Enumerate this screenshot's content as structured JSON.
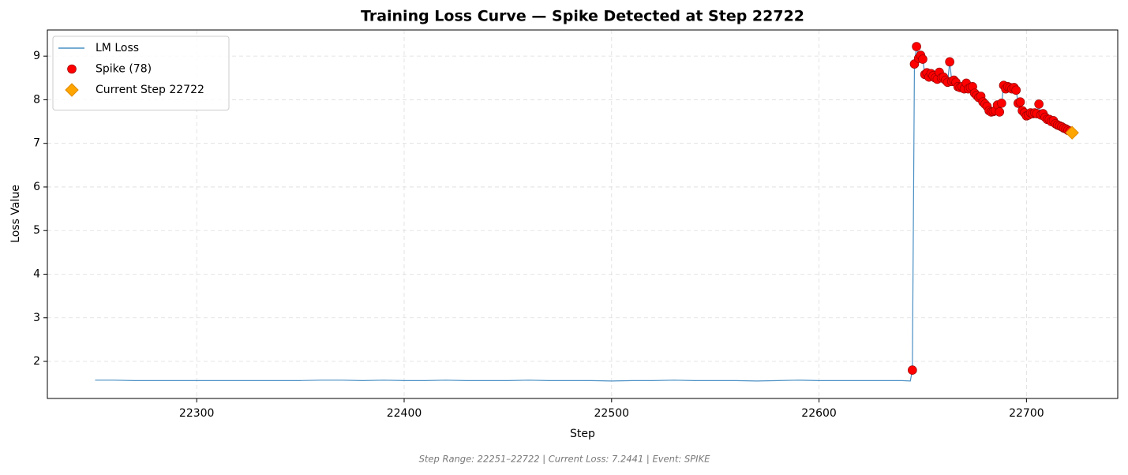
{
  "chart_data": {
    "type": "line",
    "title": "Training Loss Curve — Spike Detected at Step 22722",
    "x_label": "Step",
    "y_label": "Loss Value",
    "footer": "Step Range: 22251–22722 | Current Loss: 7.2441 | Event: SPIKE",
    "xlim": [
      22228,
      22744
    ],
    "ylim": [
      1.15,
      9.6
    ],
    "xticks": [
      22300,
      22400,
      22500,
      22600,
      22700
    ],
    "yticks": [
      2,
      3,
      4,
      5,
      6,
      7,
      8,
      9
    ],
    "grid": true,
    "legend": "upper-left",
    "series": [
      {
        "name": "LM Loss",
        "type": "line",
        "color": "#4a8fc4",
        "x": [
          22251,
          22260,
          22270,
          22280,
          22290,
          22300,
          22310,
          22320,
          22330,
          22340,
          22350,
          22360,
          22370,
          22380,
          22390,
          22400,
          22410,
          22420,
          22430,
          22440,
          22450,
          22460,
          22470,
          22480,
          22490,
          22500,
          22510,
          22520,
          22530,
          22540,
          22550,
          22560,
          22570,
          22580,
          22590,
          22600,
          22610,
          22620,
          22630,
          22640,
          22644,
          22645,
          22646,
          22647,
          22648,
          22649,
          22650,
          22651,
          22652,
          22653,
          22654,
          22655,
          22656,
          22657,
          22658,
          22659,
          22660,
          22661,
          22662,
          22663,
          22664,
          22665,
          22666,
          22667,
          22668,
          22669,
          22670,
          22671,
          22672,
          22673,
          22674,
          22675,
          22676,
          22677,
          22678,
          22679,
          22680,
          22681,
          22682,
          22683,
          22684,
          22685,
          22686,
          22687,
          22688,
          22689,
          22690,
          22691,
          22692,
          22693,
          22694,
          22695,
          22696,
          22697,
          22698,
          22699,
          22700,
          22701,
          22702,
          22703,
          22704,
          22705,
          22706,
          22707,
          22708,
          22709,
          22710,
          22711,
          22712,
          22713,
          22714,
          22715,
          22716,
          22717,
          22718,
          22719,
          22720,
          22721,
          22722
        ],
        "values": [
          1.57,
          1.57,
          1.56,
          1.56,
          1.56,
          1.56,
          1.56,
          1.56,
          1.56,
          1.56,
          1.56,
          1.57,
          1.57,
          1.56,
          1.57,
          1.56,
          1.56,
          1.57,
          1.56,
          1.56,
          1.56,
          1.57,
          1.56,
          1.56,
          1.56,
          1.55,
          1.56,
          1.56,
          1.57,
          1.56,
          1.56,
          1.56,
          1.55,
          1.56,
          1.57,
          1.56,
          1.56,
          1.56,
          1.56,
          1.56,
          1.55,
          1.8,
          8.82,
          9.22,
          8.95,
          9.02,
          8.93,
          8.58,
          8.62,
          8.52,
          8.6,
          8.55,
          8.5,
          8.47,
          8.63,
          8.5,
          8.52,
          8.45,
          8.4,
          8.87,
          8.42,
          8.45,
          8.4,
          8.3,
          8.28,
          8.3,
          8.25,
          8.38,
          8.25,
          8.28,
          8.3,
          8.15,
          8.1,
          8.05,
          8.08,
          7.95,
          7.9,
          7.85,
          7.75,
          7.72,
          7.73,
          7.75,
          7.88,
          7.72,
          7.92,
          8.33,
          8.25,
          8.3,
          8.28,
          8.25,
          8.28,
          8.22,
          7.92,
          7.95,
          7.75,
          7.7,
          7.63,
          7.65,
          7.7,
          7.68,
          7.7,
          7.68,
          7.9,
          7.65,
          7.68,
          7.6,
          7.55,
          7.55,
          7.5,
          7.52,
          7.45,
          7.42,
          7.4,
          7.38,
          7.35,
          7.33,
          7.3,
          7.28,
          7.2441
        ]
      },
      {
        "name": "Spike (78)",
        "type": "scatter",
        "color": "#ff0000",
        "x": [
          22645,
          22646,
          22647,
          22648,
          22649,
          22650,
          22651,
          22652,
          22653,
          22654,
          22655,
          22656,
          22657,
          22658,
          22659,
          22660,
          22661,
          22662,
          22663,
          22664,
          22665,
          22666,
          22667,
          22668,
          22669,
          22670,
          22671,
          22672,
          22673,
          22674,
          22675,
          22676,
          22677,
          22678,
          22679,
          22680,
          22681,
          22682,
          22683,
          22684,
          22685,
          22686,
          22687,
          22688,
          22689,
          22690,
          22691,
          22692,
          22693,
          22694,
          22695,
          22696,
          22697,
          22698,
          22699,
          22700,
          22701,
          22702,
          22703,
          22704,
          22705,
          22706,
          22707,
          22708,
          22709,
          22710,
          22711,
          22712,
          22713,
          22714,
          22715,
          22716,
          22717,
          22718,
          22719,
          22720,
          22721,
          22722
        ],
        "values": [
          1.8,
          8.82,
          9.22,
          8.95,
          9.02,
          8.93,
          8.58,
          8.62,
          8.52,
          8.6,
          8.55,
          8.5,
          8.47,
          8.63,
          8.5,
          8.52,
          8.45,
          8.4,
          8.87,
          8.42,
          8.45,
          8.4,
          8.3,
          8.28,
          8.3,
          8.25,
          8.38,
          8.25,
          8.28,
          8.3,
          8.15,
          8.1,
          8.05,
          8.08,
          7.95,
          7.9,
          7.85,
          7.75,
          7.72,
          7.73,
          7.75,
          7.88,
          7.72,
          7.92,
          8.33,
          8.25,
          8.3,
          8.28,
          8.25,
          8.28,
          8.22,
          7.92,
          7.95,
          7.75,
          7.7,
          7.63,
          7.65,
          7.7,
          7.68,
          7.7,
          7.68,
          7.9,
          7.65,
          7.68,
          7.6,
          7.55,
          7.55,
          7.5,
          7.52,
          7.45,
          7.42,
          7.4,
          7.38,
          7.35,
          7.33,
          7.3,
          7.28,
          7.2441
        ]
      },
      {
        "name": "Current Step 22722",
        "type": "diamond",
        "color": "#ffa500",
        "x": [
          22722
        ],
        "values": [
          7.2441
        ]
      }
    ]
  }
}
